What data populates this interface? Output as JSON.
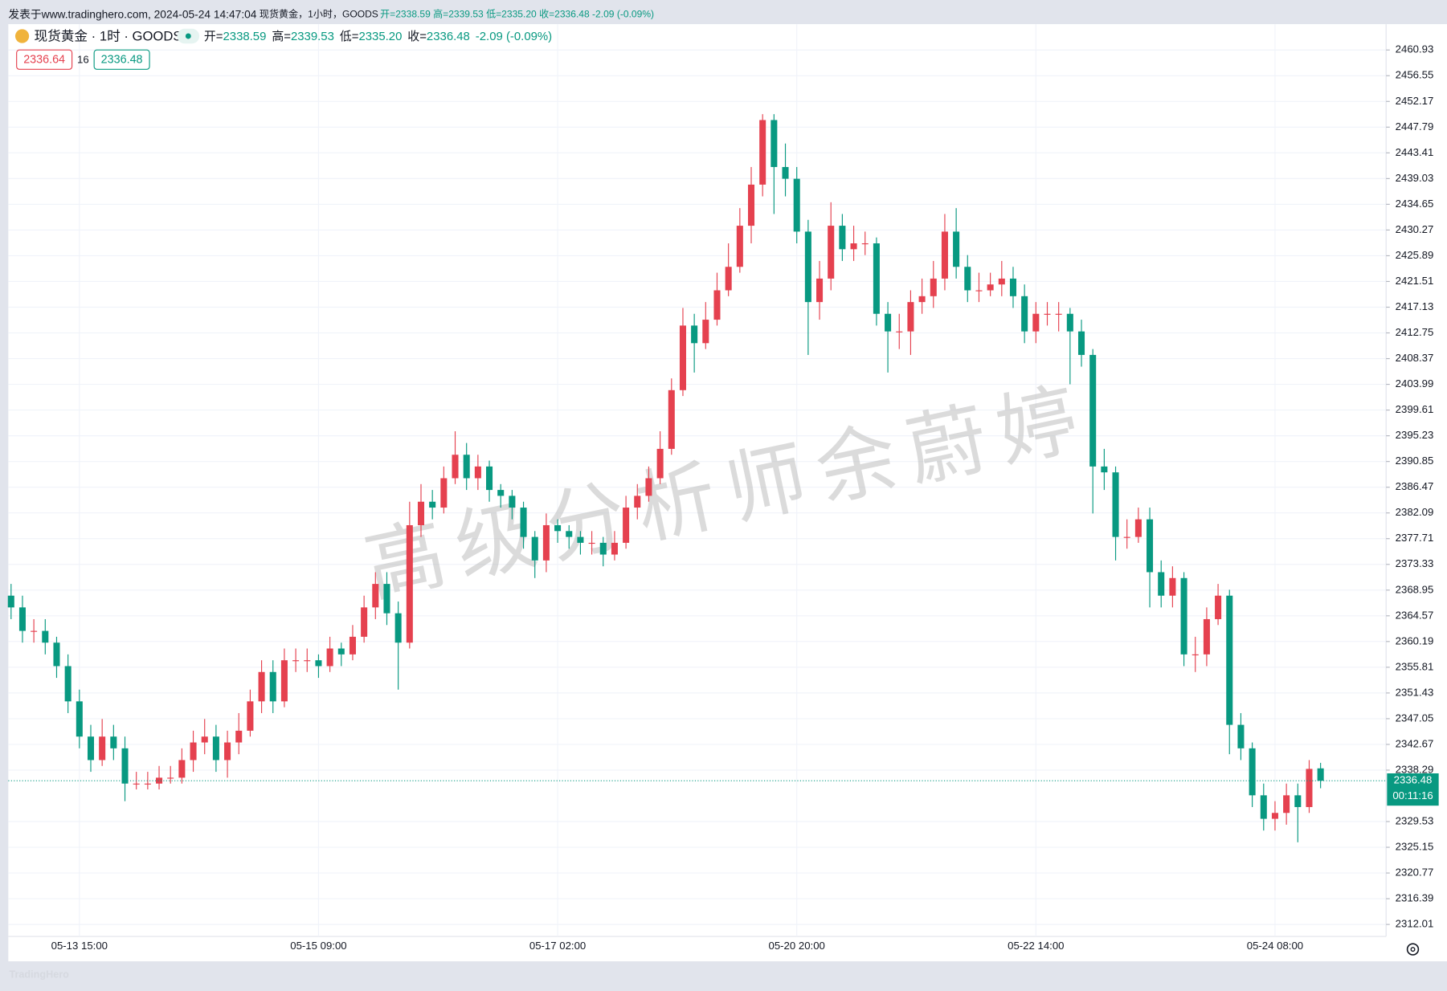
{
  "banner": {
    "prefix": "发表于www.tradinghero.com, 2024-05-24 14:47:04",
    "symbol_info": "现货黄金，1小时，GOODS",
    "ohlc_text": "开=2338.59 高=2339.53 低=2335.20 收=2336.48 -2.09 (-0.09%)"
  },
  "legend": {
    "symbol": "现货黄金 · 1时 · GOODS",
    "items": [
      {
        "label": "开=",
        "value": "2338.59"
      },
      {
        "label": "高=",
        "value": "2339.53"
      },
      {
        "label": "低=",
        "value": "2335.20"
      },
      {
        "label": "收=",
        "value": "2336.48"
      }
    ],
    "change": "-2.09 (-0.09%)",
    "bid": "2336.64",
    "spread": "16",
    "ask": "2336.48"
  },
  "watermark": "高级分析师余蔚婷",
  "footer": "TradingHero",
  "chart_data": {
    "type": "candlestick",
    "categories": [
      null,
      null,
      null,
      null,
      null,
      null,
      "05-13 15:00",
      null,
      null,
      null,
      null,
      null,
      null,
      null,
      null,
      null,
      null,
      null,
      null,
      null,
      null,
      null,
      null,
      null,
      null,
      null,
      null,
      "05-15 09:00",
      null,
      null,
      null,
      null,
      null,
      null,
      null,
      null,
      null,
      null,
      null,
      null,
      null,
      null,
      null,
      null,
      null,
      null,
      null,
      null,
      "05-17 02:00",
      null,
      null,
      null,
      null,
      null,
      null,
      null,
      null,
      null,
      null,
      null,
      null,
      null,
      null,
      null,
      null,
      null,
      null,
      null,
      null,
      "05-20 20:00",
      null,
      null,
      null,
      null,
      null,
      null,
      null,
      null,
      null,
      null,
      null,
      null,
      null,
      null,
      null,
      null,
      null,
      null,
      null,
      null,
      "05-22 14:00",
      null,
      null,
      null,
      null,
      null,
      null,
      null,
      null,
      null,
      null,
      null,
      null,
      null,
      null,
      null,
      null,
      null,
      null,
      null,
      null,
      "05-24 08:00",
      null,
      null,
      null,
      null
    ],
    "open": [
      2368,
      2366,
      2362,
      2362,
      2360,
      2356,
      2350,
      2344,
      2340,
      2344,
      2342,
      2336,
      2336,
      2336,
      2337,
      2337,
      2340,
      2343,
      2344,
      2340,
      2343,
      2345,
      2350,
      2355,
      2350,
      2357,
      2357,
      2357,
      2356,
      2359,
      2358,
      2361,
      2366,
      2370,
      2365,
      2360,
      2380,
      2384,
      2383,
      2388,
      2392,
      2388,
      2390,
      2386,
      2385,
      2383,
      2378,
      2374,
      2380,
      2379,
      2378,
      2377,
      2377,
      2375,
      2377,
      2383,
      2385,
      2388,
      2393,
      2403,
      2414,
      2411,
      2415,
      2420,
      2424,
      2431,
      2438,
      2449,
      2441,
      2439,
      2430,
      2418,
      2422,
      2431,
      2427,
      2428,
      2428,
      2416,
      2413,
      2413,
      2418,
      2419,
      2422,
      2430,
      2424,
      2420,
      2420,
      2421,
      2422,
      2419,
      2413,
      2416,
      2416,
      2416,
      2413,
      2409,
      2390,
      2389,
      2378,
      2378,
      2381,
      2372,
      2368,
      2371,
      2358,
      2358,
      2364,
      2368,
      2346,
      2342,
      2334,
      2330,
      2331,
      2334,
      2332,
      2338.59
    ],
    "high": [
      2370,
      2368,
      2364,
      2364,
      2361,
      2358,
      2352,
      2346,
      2347,
      2346,
      2344,
      2338,
      2338,
      2339,
      2339,
      2342,
      2345,
      2347,
      2346,
      2345,
      2348,
      2352,
      2357,
      2357,
      2359,
      2359,
      2359,
      2358,
      2361,
      2360,
      2363,
      2368,
      2372,
      2372,
      2367,
      2384,
      2387,
      2386,
      2390,
      2396,
      2394,
      2392,
      2391,
      2387,
      2386,
      2384,
      2379,
      2382,
      2381,
      2380,
      2379,
      2379,
      2378,
      2379,
      2385,
      2387,
      2390,
      2396,
      2405,
      2417,
      2416,
      2418,
      2423,
      2428,
      2434,
      2441,
      2450,
      2450,
      2445,
      2441,
      2432,
      2425,
      2435,
      2433,
      2431,
      2430,
      2429,
      2418,
      2416,
      2420,
      2422,
      2425,
      2433,
      2434,
      2426,
      2423,
      2423,
      2425,
      2424,
      2421,
      2418,
      2418,
      2418,
      2417,
      2415,
      2410,
      2393,
      2390,
      2381,
      2383,
      2383,
      2374,
      2373,
      2372,
      2361,
      2366,
      2370,
      2369,
      2348,
      2343,
      2336,
      2333,
      2336,
      2336,
      2340,
      2339.53
    ],
    "low": [
      2364,
      2360,
      2360,
      2358,
      2354,
      2348,
      2342,
      2338,
      2339,
      2340,
      2333,
      2335,
      2335,
      2335,
      2336,
      2336,
      2338,
      2341,
      2338,
      2337,
      2341,
      2344,
      2348,
      2348,
      2349,
      2355,
      2355,
      2354,
      2355,
      2356,
      2357,
      2360,
      2364,
      2363,
      2352,
      2359,
      2378,
      2381,
      2382,
      2387,
      2386,
      2386,
      2384,
      2383,
      2381,
      2376,
      2371,
      2372,
      2377,
      2376,
      2375,
      2375,
      2373,
      2374,
      2376,
      2381,
      2384,
      2387,
      2392,
      2402,
      2406,
      2410,
      2414,
      2419,
      2423,
      2428,
      2436,
      2433,
      2436,
      2428,
      2409,
      2415,
      2420,
      2425,
      2425,
      2426,
      2414,
      2406,
      2410,
      2409,
      2416,
      2417,
      2420,
      2422,
      2418,
      2418,
      2419,
      2419,
      2417,
      2411,
      2411,
      2414,
      2413,
      2404,
      2407,
      2382,
      2386,
      2374,
      2376,
      2377,
      2366,
      2366,
      2366,
      2356,
      2355,
      2356,
      2363,
      2341,
      2340,
      2332,
      2328,
      2328,
      2329,
      2326,
      2331,
      2335.2
    ],
    "close": [
      2366,
      2362,
      2362,
      2360,
      2356,
      2350,
      2344,
      2340,
      2344,
      2342,
      2336,
      2336,
      2336,
      2337,
      2337,
      2340,
      2343,
      2344,
      2340,
      2343,
      2345,
      2350,
      2355,
      2350,
      2357,
      2357,
      2357,
      2356,
      2359,
      2358,
      2361,
      2366,
      2370,
      2365,
      2360,
      2380,
      2384,
      2383,
      2388,
      2392,
      2388,
      2390,
      2386,
      2385,
      2383,
      2378,
      2374,
      2380,
      2379,
      2378,
      2377,
      2377,
      2375,
      2377,
      2383,
      2385,
      2388,
      2393,
      2403,
      2414,
      2411,
      2415,
      2420,
      2424,
      2431,
      2438,
      2449,
      2441,
      2439,
      2430,
      2418,
      2422,
      2431,
      2427,
      2428,
      2428,
      2416,
      2413,
      2413,
      2418,
      2419,
      2422,
      2430,
      2424,
      2420,
      2420,
      2421,
      2422,
      2419,
      2413,
      2416,
      2416,
      2416,
      2413,
      2409,
      2390,
      2389,
      2378,
      2378,
      2381,
      2372,
      2368,
      2371,
      2358,
      2358,
      2364,
      2368,
      2346,
      2342,
      2334,
      2330,
      2331,
      2334,
      2332,
      2338.5,
      2336.48
    ],
    "up_color": "#e5414f",
    "down_color": "#089981",
    "ylim": [
      2309.97,
      2465.33
    ],
    "yticks": [
      2312.01,
      2316.39,
      2320.77,
      2325.15,
      2329.53,
      2338.29,
      2342.67,
      2347.05,
      2351.43,
      2355.81,
      2360.19,
      2364.57,
      2368.95,
      2373.33,
      2377.71,
      2382.09,
      2386.47,
      2390.85,
      2395.23,
      2399.61,
      2403.99,
      2408.37,
      2412.75,
      2417.13,
      2421.51,
      2425.89,
      2430.27,
      2434.65,
      2439.03,
      2443.41,
      2447.79,
      2452.17,
      2456.55,
      2460.93
    ],
    "grid": true,
    "last_price_line": true,
    "countdown": "00:11:16"
  }
}
